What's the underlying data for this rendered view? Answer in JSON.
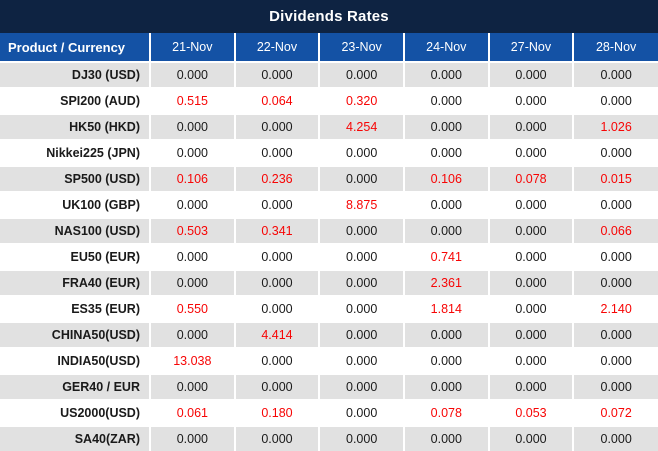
{
  "title": "Dividends Rates",
  "colors": {
    "title_bg": "#0e2342",
    "header_bg": "#1452a5",
    "header_text": "#ffffff",
    "row_bg": "#ffffff",
    "row_alt_bg": "#e1e1e1",
    "text": "#1a1a1a",
    "highlight_red": "#f70505"
  },
  "chart_data": {
    "type": "table",
    "title": "Dividends Rates",
    "corner_header": "Product / Currency",
    "date_columns": [
      "21-Nov",
      "22-Nov",
      "23-Nov",
      "24-Nov",
      "27-Nov",
      "28-Nov"
    ],
    "rows": [
      {
        "product": "DJ30 (USD)",
        "values": [
          "0.000",
          "0.000",
          "0.000",
          "0.000",
          "0.000",
          "0.000"
        ],
        "red": [
          false,
          false,
          false,
          false,
          false,
          false
        ]
      },
      {
        "product": "SPI200 (AUD)",
        "values": [
          "0.515",
          "0.064",
          "0.320",
          "0.000",
          "0.000",
          "0.000"
        ],
        "red": [
          true,
          true,
          true,
          false,
          false,
          false
        ]
      },
      {
        "product": "HK50 (HKD)",
        "values": [
          "0.000",
          "0.000",
          "4.254",
          "0.000",
          "0.000",
          "1.026"
        ],
        "red": [
          false,
          false,
          true,
          false,
          false,
          true
        ]
      },
      {
        "product": "Nikkei225 (JPN)",
        "values": [
          "0.000",
          "0.000",
          "0.000",
          "0.000",
          "0.000",
          "0.000"
        ],
        "red": [
          false,
          false,
          false,
          false,
          false,
          false
        ]
      },
      {
        "product": "SP500 (USD)",
        "values": [
          "0.106",
          "0.236",
          "0.000",
          "0.106",
          "0.078",
          "0.015"
        ],
        "red": [
          true,
          true,
          false,
          true,
          true,
          true
        ]
      },
      {
        "product": "UK100 (GBP)",
        "values": [
          "0.000",
          "0.000",
          "8.875",
          "0.000",
          "0.000",
          "0.000"
        ],
        "red": [
          false,
          false,
          true,
          false,
          false,
          false
        ]
      },
      {
        "product": "NAS100 (USD)",
        "values": [
          "0.503",
          "0.341",
          "0.000",
          "0.000",
          "0.000",
          "0.066"
        ],
        "red": [
          true,
          true,
          false,
          false,
          false,
          true
        ]
      },
      {
        "product": "EU50 (EUR)",
        "values": [
          "0.000",
          "0.000",
          "0.000",
          "0.741",
          "0.000",
          "0.000"
        ],
        "red": [
          false,
          false,
          false,
          true,
          false,
          false
        ]
      },
      {
        "product": "FRA40 (EUR)",
        "values": [
          "0.000",
          "0.000",
          "0.000",
          "2.361",
          "0.000",
          "0.000"
        ],
        "red": [
          false,
          false,
          false,
          true,
          false,
          false
        ]
      },
      {
        "product": "ES35 (EUR)",
        "values": [
          "0.550",
          "0.000",
          "0.000",
          "1.814",
          "0.000",
          "2.140"
        ],
        "red": [
          true,
          false,
          false,
          true,
          false,
          true
        ]
      },
      {
        "product": "CHINA50(USD)",
        "values": [
          "0.000",
          "4.414",
          "0.000",
          "0.000",
          "0.000",
          "0.000"
        ],
        "red": [
          false,
          true,
          false,
          false,
          false,
          false
        ]
      },
      {
        "product": "INDIA50(USD)",
        "values": [
          "13.038",
          "0.000",
          "0.000",
          "0.000",
          "0.000",
          "0.000"
        ],
        "red": [
          true,
          false,
          false,
          false,
          false,
          false
        ]
      },
      {
        "product": "GER40 / EUR",
        "values": [
          "0.000",
          "0.000",
          "0.000",
          "0.000",
          "0.000",
          "0.000"
        ],
        "red": [
          false,
          false,
          false,
          false,
          false,
          false
        ]
      },
      {
        "product": "US2000(USD)",
        "values": [
          "0.061",
          "0.180",
          "0.000",
          "0.078",
          "0.053",
          "0.072"
        ],
        "red": [
          true,
          true,
          false,
          true,
          true,
          true
        ]
      },
      {
        "product": "SA40(ZAR)",
        "values": [
          "0.000",
          "0.000",
          "0.000",
          "0.000",
          "0.000",
          "0.000"
        ],
        "red": [
          false,
          false,
          false,
          false,
          false,
          false
        ]
      }
    ]
  }
}
